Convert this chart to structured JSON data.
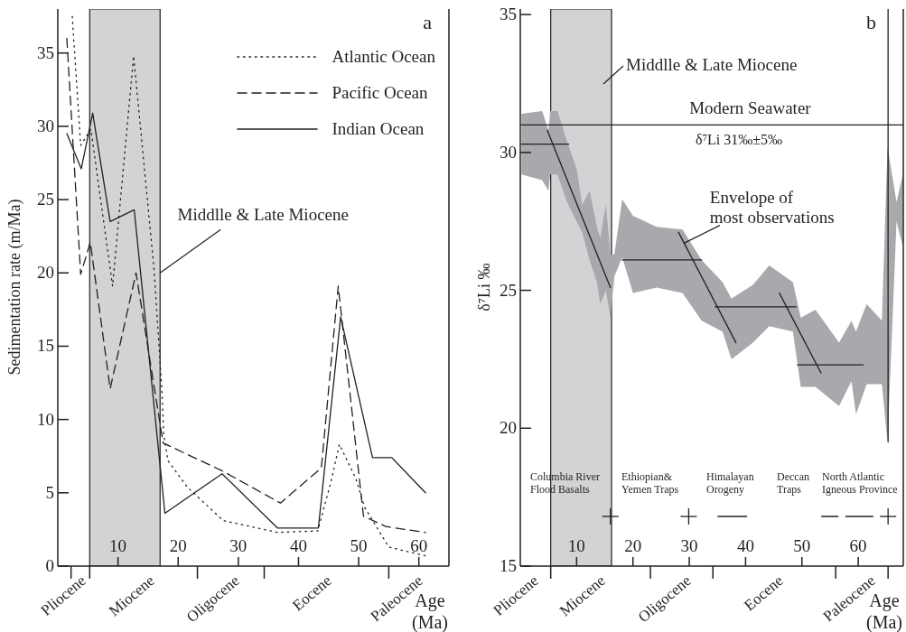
{
  "chart_data": [
    {
      "type": "line",
      "ylabel": "Sedimentation rate (m/Ma)",
      "xlabel": "Age\n(Ma)",
      "xlim": [
        0,
        65
      ],
      "xticks": [
        {
          "value": 2.2,
          "label": null
        },
        {
          "value": 5.3,
          "label": null
        },
        10,
        20,
        {
          "value": 23.2,
          "label": null
        },
        30,
        {
          "value": 34.3,
          "label": null
        },
        40,
        50,
        {
          "value": 55,
          "label": null
        },
        60
      ],
      "ylim": [
        0,
        38
      ],
      "yticks": [
        0,
        5,
        10,
        15,
        20,
        25,
        30,
        35
      ],
      "bands": [
        {
          "axis": "x",
          "from": 5.3,
          "to": 17,
          "color": "#d1d3d4"
        }
      ],
      "legend": "top right",
      "annotations": [
        "a",
        "Pliocene",
        "Miocene",
        "Oligocene",
        "Eocene",
        "Paleocene",
        {
          "text": "Middlle & Late Miocene",
          "x": 17,
          "y": 20
        }
      ],
      "series": [
        {
          "name": "Atlantic Ocean",
          "color": "#231f20",
          "line_style": "dotted",
          "x": [
            2.4,
            3.8,
            5.5,
            9.1,
            12.6,
            16,
            17.3,
            17.6,
            18.3,
            21.5,
            27.5,
            36.5,
            43.2,
            45.3,
            46.8,
            49.5,
            51,
            55,
            61.1
          ],
          "values": [
            37.5,
            28.7,
            29.8,
            19.1,
            34.8,
            20.2,
            12,
            9,
            7.2,
            5.4,
            3.1,
            2.3,
            2.4,
            5.6,
            8.3,
            6,
            4,
            1.3,
            0.7
          ]
        },
        {
          "name": "Pacific Ocean",
          "color": "#231f20",
          "line_style": "dashed",
          "x": [
            1.5,
            3.8,
            5.4,
            8.7,
            13,
            17.5,
            27.3,
            37,
            43.8,
            46.6,
            50.8,
            54.5,
            61.1
          ],
          "values": [
            36,
            19.9,
            22.1,
            12.1,
            20,
            8.4,
            6.5,
            4.3,
            6.7,
            19.1,
            3.4,
            2.7,
            2.3
          ]
        },
        {
          "name": "Indian Ocean",
          "color": "#231f20",
          "line_style": "solid",
          "x": [
            1.5,
            3.9,
            5.8,
            8.7,
            12.7,
            17.8,
            27.3,
            36.5,
            43.3,
            47,
            52.3,
            55.5,
            61.1
          ],
          "values": [
            29.5,
            27.1,
            30.9,
            23.5,
            24.3,
            3.6,
            6.3,
            2.6,
            2.6,
            17,
            7.4,
            7.4,
            5
          ]
        }
      ]
    },
    {
      "type": "line",
      "ylabel": "δ⁷Li ‰",
      "xlabel": "Age\n(Ma)",
      "xlim": [
        0,
        68
      ],
      "xticks": [
        {
          "value": 5.4,
          "label": null
        },
        10,
        20,
        {
          "value": 23.1,
          "label": null
        },
        30,
        {
          "value": 34.2,
          "label": null
        },
        40,
        50,
        {
          "value": 56,
          "label": null
        },
        60,
        {
          "value": 65.3,
          "label": null
        }
      ],
      "ylim": [
        15,
        35.2
      ],
      "yticks": [
        15,
        20,
        25,
        30,
        35
      ],
      "bands": [
        {
          "axis": "x",
          "from": 5.4,
          "to": 16.2,
          "color": "#d1d3d4"
        }
      ],
      "ref_lines": [
        {
          "axis": "y",
          "value": 31,
          "label": "Modern Seawater"
        }
      ],
      "annotations": [
        "b",
        "δ⁷Li 31‰±5‰",
        "Columbia River\nFlood Basalts",
        "Ethiopian&\nYemen  Traps",
        "Himalayan\nOrogeny",
        "Deccan\nTraps",
        "North  Atlantic\nIgneous  Province",
        "Middlle & Late Miocene",
        "Pliocene",
        "Miocene",
        "Oligocene",
        "Eocene",
        "Paleocene",
        {
          "text": "Envelope of\nmost observations",
          "x": 29,
          "y": 26.7
        }
      ],
      "series": [
        {
          "color": "#a7a9ac",
          "values": [
            null,
            null,
            null,
            null,
            null,
            null,
            null,
            null,
            null,
            null,
            null,
            null,
            null,
            null,
            null,
            null,
            null,
            null,
            null,
            null,
            null,
            null,
            null,
            null,
            null,
            null,
            null,
            null,
            null,
            null,
            null,
            null,
            null,
            null
          ],
          "x": [
            0.2,
            3.9,
            5.0,
            5.3,
            6.6,
            8.3,
            10.0,
            11.0,
            12.3,
            13.6,
            14.2,
            15.2,
            16.0,
            16.7,
            18.1,
            20.0,
            24.2,
            28.8,
            32.2,
            35.9,
            37.5,
            41.3,
            44.2,
            48.4,
            49.8,
            52.4,
            56.6,
            58.8,
            59.6,
            61.5,
            64.2,
            65.2,
            66.8,
            67.9
          ],
          "upper": [
            31.4,
            31.5,
            30.8,
            31.5,
            31.5,
            30.4,
            29.4,
            28.1,
            28.6,
            27.3,
            26.9,
            28.1,
            26.3,
            26.3,
            28.3,
            27.7,
            27.3,
            27.2,
            26.1,
            25.3,
            24.7,
            25.2,
            25.9,
            25.3,
            24.0,
            24.3,
            23.1,
            23.9,
            23.5,
            24.5,
            23.9,
            30.2,
            28.2,
            29.2
          ],
          "lower": [
            29.2,
            29.0,
            28.6,
            29.2,
            29.2,
            28.2,
            27.5,
            27.1,
            26.1,
            25.3,
            24.5,
            25.0,
            24.0,
            25.5,
            26.2,
            24.9,
            25.1,
            24.9,
            23.9,
            23.5,
            22.5,
            23.1,
            23.7,
            23.5,
            21.5,
            21.5,
            20.8,
            21.7,
            20.5,
            21.6,
            21.6,
            19.5,
            27.5,
            26.6
          ]
        },
        {
          "color": "#231f20",
          "x": [
            0.2,
            8.6
          ],
          "values": [
            30.3,
            30.3
          ]
        },
        {
          "color": "#231f20",
          "x": [
            4.8,
            16
          ],
          "values": [
            30.8,
            25.1
          ]
        },
        {
          "color": "#231f20",
          "x": [
            18.1,
            32.2
          ],
          "values": [
            26.1,
            26.1
          ]
        },
        {
          "color": "#231f20",
          "x": [
            28.1,
            38.3
          ],
          "values": [
            27.1,
            23.1
          ]
        },
        {
          "color": "#231f20",
          "x": [
            34.6,
            49
          ],
          "values": [
            24.4,
            24.4
          ]
        },
        {
          "color": "#231f20",
          "x": [
            46,
            53.4
          ],
          "values": [
            24.9,
            22
          ]
        },
        {
          "color": "#231f20",
          "x": [
            49.2,
            60.9
          ],
          "values": [
            22.3,
            22.3
          ]
        },
        {
          "color": "#231f20",
          "x": [
            65.3,
            65.3
          ],
          "values": [
            35.2,
            19.5
          ]
        },
        {
          "type": "scatter",
          "marker": "cross",
          "color": "#231f20",
          "x": [
            16,
            29.9,
            65.3
          ],
          "values": [
            16.8,
            16.8,
            16.8
          ]
        },
        {
          "color": "#231f20",
          "x": [
            35.1,
            40.2
          ],
          "values": [
            16.8,
            16.8
          ]
        },
        {
          "color": "#231f20",
          "x": [
            53.5,
            56.4
          ],
          "values": [
            16.8,
            16.8
          ]
        },
        {
          "color": "#231f20",
          "x": [
            57.8,
            62.6
          ],
          "values": [
            16.8,
            16.8
          ]
        }
      ]
    }
  ]
}
